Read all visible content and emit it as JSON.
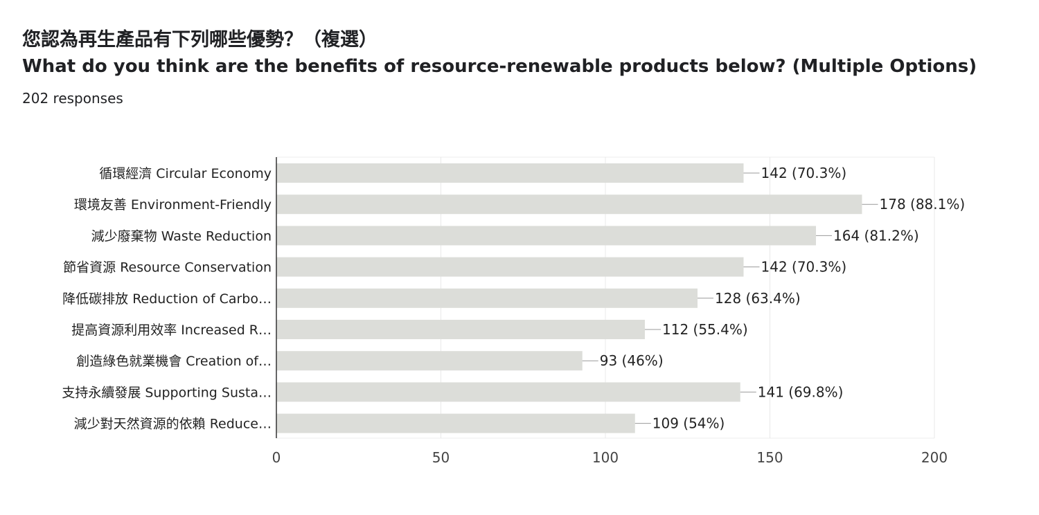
{
  "question": {
    "title_zh": "您認為再生產品有下列哪些優勢？（複選）",
    "title_en": "What do you think are the benefits of resource-renewable products below? (Multiple Options)",
    "responses": "202 responses"
  },
  "chart_data": {
    "type": "bar",
    "orientation": "horizontal",
    "categories": [
      "循環經濟 Circular Economy",
      "環境友善 Environment-Friendly",
      "減少廢棄物 Waste Reduction",
      "節省資源 Resource Conservation",
      "降低碳排放 Reduction of Carbo…",
      "提高資源利用效率 Increased R…",
      "創造綠色就業機會 Creation of…",
      "支持永續發展 Supporting Susta…",
      "減少對天然資源的依賴 Reduce…"
    ],
    "values": [
      142,
      178,
      164,
      142,
      128,
      112,
      93,
      141,
      109
    ],
    "data_labels": [
      "142 (70.3%)",
      "178 (88.1%)",
      "164 (81.2%)",
      "142 (70.3%)",
      "128 (63.4%)",
      "112 (55.4%)",
      "93 (46%)",
      "141 (69.8%)",
      "109 (54%)"
    ],
    "xlim": [
      0,
      200
    ],
    "xticks": [
      0,
      50,
      100,
      150,
      200
    ],
    "xtick_labels": [
      "0",
      "50",
      "100",
      "150",
      "200"
    ],
    "grid": true,
    "bar_color": "#dcddd9"
  }
}
